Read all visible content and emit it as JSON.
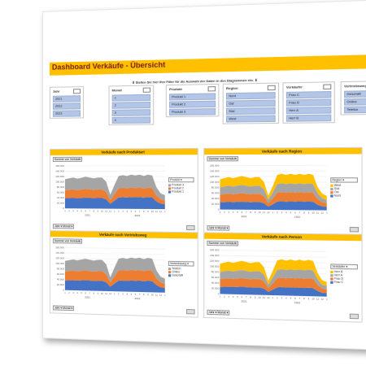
{
  "dashboard": {
    "title": "Dashboard Verkäufe - Übersicht",
    "hint": "⬇ Stellen Sie hier Ihre Filter für die Auswahl der Daten in den Diagrammen ein. ⬇"
  },
  "slicers": [
    {
      "title": "Jahr",
      "items": [
        "2021",
        "2022",
        "2023"
      ]
    },
    {
      "title": "Monat",
      "items": [
        "1",
        "2",
        "3",
        "4"
      ]
    },
    {
      "title": "Produkt",
      "items": [
        "Produkt 1",
        "Produkt 2",
        "Produkt 3"
      ]
    },
    {
      "title": "Region",
      "items": [
        "Nord",
        "Ost",
        "Süd",
        "West"
      ]
    },
    {
      "title": "Verkäufer",
      "items": [
        "Frau C",
        "Frau D",
        "Herr A",
        "Herr B"
      ]
    },
    {
      "title": "Vertriebsweg",
      "items": [
        "Geschäft",
        "Online",
        "Telefon"
      ]
    }
  ],
  "charts": [
    {
      "title": "Verkäufe nach Produktart",
      "value_button": "Summe von Verkäufe",
      "legend_title": "Produkt",
      "legend": [
        "Produkt 3",
        "Produkt 2",
        "Produkt 1"
      ],
      "filters": "Jahr ▾ Monat ▾",
      "years": [
        "2021",
        "2022"
      ]
    },
    {
      "title": "Verkäufe nach Region",
      "value_button": "Summe von Verkäufe",
      "legend_title": "Region",
      "legend": [
        "West",
        "Süd",
        "Ost",
        "Nord"
      ],
      "filters": "Jahr ▾ Monat ▾",
      "years": [
        "2021",
        "2022"
      ]
    },
    {
      "title": "Verkäufe nach Vertriebsweg",
      "value_button": "Summe von Verkäufe",
      "legend_title": "Vertriebsweg",
      "legend": [
        "Telefon",
        "Online",
        "Geschäft"
      ],
      "filters": "Jahr ▾ Monat ▾",
      "years": [
        "2021",
        "2022"
      ]
    },
    {
      "title": "Verkäufe nach Person",
      "value_button": "Summe von Verkäufe",
      "legend_title": "Verkäufer",
      "legend": [
        "Herr B",
        "Herr A",
        "Frau D",
        "Frau C"
      ],
      "filters": "Jahr ▾ Monat ▾",
      "years": [
        "2021",
        "2022"
      ]
    }
  ],
  "colors": {
    "accent": "#ffc000",
    "blue": "#4472c4",
    "orange": "#ed7d31",
    "gray": "#a5a5a5",
    "gold": "#ffc000",
    "slicer_selected": "#b4c6e7"
  },
  "chart_data": [
    {
      "type": "area",
      "title": "Verkäufe nach Produktart",
      "ylim": [
        0,
        160000
      ],
      "yticks": [
        "160.000",
        "140.000",
        "120.000",
        "100.000",
        "80.000",
        "60.000",
        "40.000",
        "20.000",
        "0"
      ],
      "x": [
        "1",
        "2",
        "3",
        "4",
        "5",
        "6",
        "7",
        "8",
        "9",
        "10",
        "11",
        "12",
        "1",
        "2",
        "3",
        "4",
        "5",
        "6",
        "7",
        "8",
        "9",
        "10",
        "11",
        "12",
        "1"
      ],
      "series": [
        {
          "name": "Produkt 1",
          "color": "#4472c4",
          "values": [
            38000,
            39000,
            40000,
            38000,
            39000,
            41000,
            40000,
            39000,
            40000,
            40000,
            35000,
            18000,
            30000,
            42000,
            43000,
            42000,
            44000,
            43000,
            44000,
            42000,
            44000,
            43000,
            28000,
            20000,
            18000
          ]
        },
        {
          "name": "Produkt 2",
          "color": "#ed7d31",
          "values": [
            30000,
            31000,
            32000,
            31000,
            32000,
            33000,
            32000,
            31000,
            32000,
            32000,
            28000,
            14000,
            24000,
            34000,
            35000,
            34000,
            35000,
            34000,
            35000,
            34000,
            35000,
            34000,
            22000,
            16000,
            14000
          ]
        },
        {
          "name": "Produkt 3",
          "color": "#a5a5a5",
          "values": [
            42000,
            43000,
            44000,
            43000,
            44000,
            45000,
            44000,
            43000,
            44000,
            44000,
            38000,
            20000,
            34000,
            46000,
            47000,
            46000,
            48000,
            47000,
            48000,
            46000,
            48000,
            47000,
            30000,
            22000,
            20000
          ]
        }
      ]
    },
    {
      "type": "area",
      "title": "Verkäufe nach Region",
      "ylim": [
        0,
        160000
      ],
      "yticks": [
        "160.000",
        "140.000",
        "120.000",
        "100.000",
        "80.000",
        "60.000",
        "40.000",
        "20.000",
        "0"
      ],
      "x": [
        "1",
        "2",
        "3",
        "4",
        "5",
        "6",
        "7",
        "8",
        "9",
        "10",
        "11",
        "12",
        "1",
        "2",
        "3",
        "4",
        "5",
        "6",
        "7",
        "8",
        "9",
        "10",
        "11",
        "12",
        "1"
      ],
      "series": [
        {
          "name": "Nord",
          "color": "#4472c4",
          "values": [
            26000,
            27000,
            28000,
            27000,
            28000,
            29000,
            28000,
            27000,
            28000,
            28000,
            24000,
            12000,
            20000,
            30000,
            31000,
            30000,
            31000,
            30000,
            31000,
            30000,
            31000,
            30000,
            19000,
            14000,
            12000
          ]
        },
        {
          "name": "Ost",
          "color": "#ed7d31",
          "values": [
            28000,
            29000,
            30000,
            29000,
            30000,
            31000,
            30000,
            29000,
            30000,
            30000,
            26000,
            13000,
            22000,
            32000,
            33000,
            32000,
            33000,
            32000,
            33000,
            32000,
            33000,
            32000,
            21000,
            15000,
            13000
          ]
        },
        {
          "name": "Süd",
          "color": "#a5a5a5",
          "values": [
            27000,
            28000,
            29000,
            28000,
            29000,
            30000,
            29000,
            28000,
            29000,
            29000,
            25000,
            12000,
            21000,
            31000,
            32000,
            31000,
            32000,
            31000,
            32000,
            31000,
            32000,
            31000,
            20000,
            14000,
            12000
          ]
        },
        {
          "name": "West",
          "color": "#ffc000",
          "values": [
            29000,
            30000,
            31000,
            30000,
            31000,
            32000,
            31000,
            30000,
            31000,
            31000,
            26000,
            14000,
            23000,
            33000,
            34000,
            33000,
            34000,
            33000,
            34000,
            33000,
            34000,
            33000,
            22000,
            16000,
            14000
          ]
        }
      ]
    },
    {
      "type": "area",
      "title": "Verkäufe nach Vertriebsweg",
      "ylim": [
        0,
        160000
      ],
      "yticks": [
        "160.000",
        "140.000",
        "120.000",
        "100.000",
        "80.000",
        "60.000",
        "40.000",
        "20.000",
        "0"
      ],
      "x": [
        "1",
        "2",
        "3",
        "4",
        "5",
        "6",
        "7",
        "8",
        "9",
        "10",
        "11",
        "12",
        "1",
        "2",
        "3",
        "4",
        "5",
        "6",
        "7",
        "8",
        "9",
        "10",
        "11",
        "12",
        "1"
      ],
      "series": [
        {
          "name": "Geschäft",
          "color": "#4472c4",
          "values": [
            36000,
            37000,
            38000,
            37000,
            38000,
            39000,
            38000,
            37000,
            38000,
            38000,
            33000,
            17000,
            29000,
            40000,
            41000,
            40000,
            42000,
            41000,
            42000,
            40000,
            42000,
            41000,
            27000,
            19000,
            17000
          ]
        },
        {
          "name": "Online",
          "color": "#ed7d31",
          "values": [
            34000,
            35000,
            36000,
            35000,
            36000,
            37000,
            36000,
            35000,
            36000,
            36000,
            31000,
            16000,
            27000,
            38000,
            39000,
            38000,
            39000,
            38000,
            39000,
            38000,
            39000,
            38000,
            25000,
            18000,
            16000
          ]
        },
        {
          "name": "Telefon",
          "color": "#a5a5a5",
          "values": [
            40000,
            41000,
            42000,
            41000,
            42000,
            43000,
            42000,
            41000,
            42000,
            42000,
            37000,
            19000,
            32000,
            44000,
            45000,
            44000,
            46000,
            45000,
            46000,
            44000,
            46000,
            45000,
            29000,
            21000,
            19000
          ]
        }
      ]
    },
    {
      "type": "area",
      "title": "Verkäufe nach Person",
      "ylim": [
        0,
        160000
      ],
      "yticks": [
        "160.000",
        "140.000",
        "120.000",
        "100.000",
        "80.000",
        "60.000",
        "40.000",
        "20.000",
        "0"
      ],
      "x": [
        "1",
        "2",
        "3",
        "4",
        "5",
        "6",
        "7",
        "8",
        "9",
        "10",
        "11",
        "12",
        "1",
        "2",
        "3",
        "4",
        "5",
        "6",
        "7",
        "8",
        "9",
        "10",
        "11",
        "12",
        "1"
      ],
      "series": [
        {
          "name": "Frau C",
          "color": "#4472c4",
          "values": [
            25000,
            26000,
            27000,
            26000,
            27000,
            28000,
            27000,
            26000,
            27000,
            27000,
            23000,
            12000,
            20000,
            29000,
            30000,
            29000,
            30000,
            29000,
            30000,
            29000,
            30000,
            29000,
            19000,
            13000,
            12000
          ]
        },
        {
          "name": "Frau D",
          "color": "#ed7d31",
          "values": [
            29000,
            30000,
            31000,
            30000,
            31000,
            32000,
            31000,
            30000,
            31000,
            31000,
            27000,
            14000,
            23000,
            33000,
            34000,
            33000,
            34000,
            33000,
            34000,
            33000,
            34000,
            33000,
            22000,
            15000,
            14000
          ]
        },
        {
          "name": "Herr A",
          "color": "#a5a5a5",
          "values": [
            26000,
            27000,
            28000,
            27000,
            28000,
            29000,
            28000,
            27000,
            28000,
            28000,
            24000,
            12000,
            21000,
            30000,
            31000,
            30000,
            31000,
            30000,
            31000,
            30000,
            31000,
            30000,
            20000,
            14000,
            12000
          ]
        },
        {
          "name": "Herr B",
          "color": "#ffc000",
          "values": [
            30000,
            31000,
            32000,
            31000,
            32000,
            33000,
            32000,
            31000,
            32000,
            32000,
            27000,
            14000,
            24000,
            34000,
            35000,
            34000,
            35000,
            34000,
            35000,
            34000,
            35000,
            34000,
            22000,
            16000,
            14000
          ]
        }
      ]
    }
  ]
}
